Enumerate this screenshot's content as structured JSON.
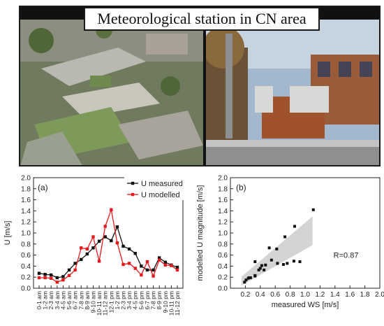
{
  "header": {
    "title": "Meteorological  station in CN area"
  },
  "photos": [
    {
      "name": "aerial-photo",
      "description": ""
    },
    {
      "name": "station-photo",
      "description": ""
    }
  ],
  "chart_data": [
    {
      "type": "line",
      "panel_label": "(a)",
      "ylabel": "U [m/s]",
      "xlabel": "",
      "ylim": [
        0,
        2.0
      ],
      "yticks": [
        "0.0",
        "0.2",
        "0.4",
        "0.6",
        "0.8",
        "1.0",
        "1.2",
        "1.4",
        "1.6",
        "1.8",
        "2.0"
      ],
      "categories": [
        "0-1 am",
        "1-2 am",
        "2-3 am",
        "3-4 am",
        "4-5 am",
        "5-6 am",
        "6-7 am",
        "7-8 am",
        "8-9 am",
        "9-10 am",
        "10-11 am",
        "11-12 am",
        "12-1 pm",
        "1-2 pm",
        "2-3 pm",
        "3-4 pm",
        "4-5 pm",
        "5-6 pm",
        "6-7 pm",
        "7-8 pm",
        "8-9 pm",
        "9-10 pm",
        "10-11 pm",
        "11-12 pm"
      ],
      "series": [
        {
          "name": "U measured",
          "color": "#111111",
          "marker": "square",
          "values": [
            0.27,
            0.25,
            0.24,
            0.19,
            0.21,
            0.33,
            0.45,
            0.52,
            0.62,
            0.73,
            0.85,
            0.93,
            0.86,
            1.11,
            0.76,
            0.71,
            0.63,
            0.4,
            0.33,
            0.33,
            0.55,
            0.47,
            0.42,
            0.38
          ]
        },
        {
          "name": "U modelled",
          "color": "#e41a1c",
          "marker": "square",
          "values": [
            0.19,
            0.19,
            0.18,
            0.11,
            0.15,
            0.23,
            0.33,
            0.73,
            0.71,
            0.93,
            0.49,
            1.12,
            1.42,
            0.82,
            0.43,
            0.45,
            0.36,
            0.24,
            0.48,
            0.22,
            0.51,
            0.42,
            0.41,
            0.33
          ]
        }
      ],
      "legend": "top-right",
      "grid": false
    },
    {
      "type": "scatter",
      "panel_label": "(b)",
      "xlabel": "measured WS [m/s]",
      "ylabel": "modelled U magnitude [m/s]",
      "xlim": [
        0,
        2.0
      ],
      "ylim": [
        0,
        2.0
      ],
      "xticks": [
        "0.2",
        "0.4",
        "0.6",
        "0.8",
        "1.0",
        "1.2",
        "1.4",
        "1.6",
        "1.8",
        "2.0"
      ],
      "yticks": [
        "0.0",
        "0.2",
        "0.4",
        "0.6",
        "0.8",
        "1.0",
        "1.2",
        "1.4",
        "1.6",
        "1.8",
        "2.0"
      ],
      "points": [
        {
          "x": 0.19,
          "y": 0.11
        },
        {
          "x": 0.21,
          "y": 0.15
        },
        {
          "x": 0.24,
          "y": 0.18
        },
        {
          "x": 0.25,
          "y": 0.19
        },
        {
          "x": 0.27,
          "y": 0.19
        },
        {
          "x": 0.33,
          "y": 0.22
        },
        {
          "x": 0.33,
          "y": 0.23
        },
        {
          "x": 0.38,
          "y": 0.33
        },
        {
          "x": 0.4,
          "y": 0.36
        },
        {
          "x": 0.42,
          "y": 0.41
        },
        {
          "x": 0.45,
          "y": 0.33
        },
        {
          "x": 0.47,
          "y": 0.42
        },
        {
          "x": 0.52,
          "y": 0.73
        },
        {
          "x": 0.55,
          "y": 0.51
        },
        {
          "x": 0.62,
          "y": 0.71
        },
        {
          "x": 0.63,
          "y": 0.45
        },
        {
          "x": 0.71,
          "y": 0.43
        },
        {
          "x": 0.73,
          "y": 0.93
        },
        {
          "x": 0.76,
          "y": 0.45
        },
        {
          "x": 0.85,
          "y": 0.49
        },
        {
          "x": 0.86,
          "y": 1.12
        },
        {
          "x": 0.93,
          "y": 0.48
        },
        {
          "x": 1.11,
          "y": 1.42
        },
        {
          "x": 0.33,
          "y": 0.48
        }
      ],
      "fit_band": {
        "x": [
          0.15,
          1.1
        ],
        "lower": [
          0.05,
          0.78
        ],
        "upper": [
          0.21,
          1.3
        ]
      },
      "annotation": "R=0.87",
      "grid": false
    }
  ]
}
